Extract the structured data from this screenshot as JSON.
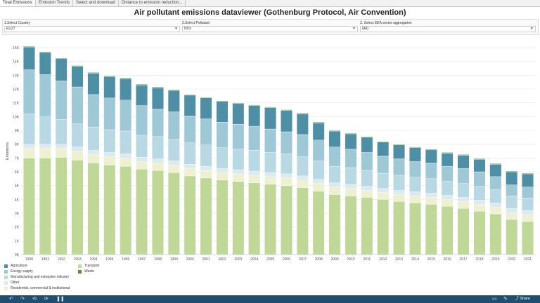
{
  "tabs": [
    {
      "label": "Total Emissions",
      "active": true
    },
    {
      "label": "Emission Trends",
      "active": false
    },
    {
      "label": "Select and download",
      "active": false
    },
    {
      "label": "Distance to emission reduction...",
      "active": false
    }
  ],
  "title": "Air pollutant emissions dataviewer (Gothenburg Protocol, Air Convention)",
  "filters": [
    {
      "label": "1.Select Country",
      "value": "EU27"
    },
    {
      "label": "2.Select Pollutant",
      "value": "NOx"
    },
    {
      "label": "3. Select EEA sector aggregation",
      "value": "(All)"
    }
  ],
  "colors": {
    "Agriculture": "#4e8fa6",
    "Energy supply": "#9ec8d6",
    "Manufacturing and extractive industry": "#b8d8e4",
    "Other": "#dbeaf0",
    "Residential, commercial & institutional": "#eef0cf",
    "Transport": "#bfd898",
    "Waste": "#4a9a3c"
  },
  "chart_data": {
    "type": "bar",
    "stacked": true,
    "ylabel": "Emissions",
    "xlabel": "",
    "ylim": [
      0,
      15000
    ],
    "y_ticks": [
      "0K",
      "1K",
      "2K",
      "3K",
      "4K",
      "5K",
      "6K",
      "7K",
      "8K",
      "9K",
      "10K",
      "11K",
      "12K",
      "13K",
      "14K",
      "15K"
    ],
    "grid": true,
    "legend_position": "bottom-left",
    "categories": [
      "1990",
      "1991",
      "1992",
      "1993",
      "1994",
      "1995",
      "1996",
      "1997",
      "1998",
      "1999",
      "2000",
      "2001",
      "2002",
      "2003",
      "2004",
      "2005",
      "2006",
      "2007",
      "2008",
      "2009",
      "2010",
      "2011",
      "2012",
      "2013",
      "2014",
      "2015",
      "2016",
      "2017",
      "2018",
      "2019",
      "2020",
      "2021"
    ],
    "series": [
      {
        "name": "Transport",
        "values": [
          7000,
          7000,
          7050,
          6850,
          6650,
          6500,
          6400,
          6200,
          6100,
          5950,
          5700,
          5550,
          5400,
          5300,
          5200,
          5100,
          5000,
          4850,
          4600,
          4350,
          4250,
          4150,
          4000,
          3850,
          3750,
          3650,
          3500,
          3350,
          3150,
          2950,
          2550,
          2400
        ]
      },
      {
        "name": "Residential, commercial & institutional",
        "values": [
          700,
          700,
          650,
          650,
          600,
          600,
          600,
          550,
          550,
          550,
          550,
          550,
          550,
          550,
          550,
          550,
          550,
          550,
          550,
          550,
          550,
          500,
          500,
          500,
          500,
          500,
          500,
          500,
          500,
          500,
          500,
          500
        ]
      },
      {
        "name": "Other",
        "values": [
          300,
          300,
          300,
          300,
          300,
          300,
          300,
          300,
          300,
          300,
          300,
          300,
          300,
          300,
          300,
          300,
          300,
          300,
          300,
          300,
          300,
          300,
          300,
          300,
          300,
          300,
          300,
          300,
          300,
          300,
          300,
          300
        ]
      },
      {
        "name": "Manufacturing and extractive industry",
        "values": [
          2200,
          2000,
          1800,
          1700,
          1700,
          1650,
          1650,
          1600,
          1600,
          1550,
          1550,
          1550,
          1500,
          1500,
          1500,
          1450,
          1450,
          1400,
          1350,
          1200,
          1200,
          1150,
          1100,
          1100,
          1050,
          1050,
          1000,
          1000,
          1000,
          950,
          900,
          900
        ]
      },
      {
        "name": "Energy supply",
        "values": [
          3200,
          3050,
          2800,
          2650,
          2350,
          2300,
          2250,
          2150,
          2000,
          2000,
          1950,
          1900,
          1850,
          1800,
          1750,
          1700,
          1600,
          1600,
          1500,
          1400,
          1350,
          1300,
          1250,
          1200,
          1150,
          1150,
          1100,
          1100,
          1050,
          950,
          800,
          800
        ]
      },
      {
        "name": "Agriculture",
        "values": [
          1650,
          1600,
          1600,
          1500,
          1550,
          1550,
          1550,
          1500,
          1550,
          1550,
          1500,
          1500,
          1500,
          1500,
          1500,
          1550,
          1550,
          1500,
          1250,
          1150,
          1100,
          1100,
          1000,
          1000,
          1000,
          950,
          950,
          950,
          900,
          900,
          950,
          950
        ]
      },
      {
        "name": "Waste",
        "values": [
          50,
          50,
          50,
          50,
          50,
          50,
          50,
          50,
          50,
          50,
          50,
          50,
          50,
          50,
          50,
          50,
          50,
          50,
          50,
          50,
          50,
          50,
          50,
          50,
          50,
          50,
          50,
          50,
          50,
          50,
          50,
          50
        ]
      }
    ]
  },
  "legend": {
    "col1": [
      "Agriculture",
      "Energy supply",
      "Manufacturing and extractive industry",
      "Other",
      "Residential, commercial & institutional"
    ],
    "col2": [
      "Transport",
      "Waste"
    ]
  },
  "toolbar": {
    "icons": [
      "undo-icon",
      "redo-icon",
      "revert-icon",
      "refresh-icon",
      "pause-icon",
      "device-preview-icon",
      "comment-icon",
      "fullscreen-icon"
    ],
    "share_label": "Share"
  }
}
